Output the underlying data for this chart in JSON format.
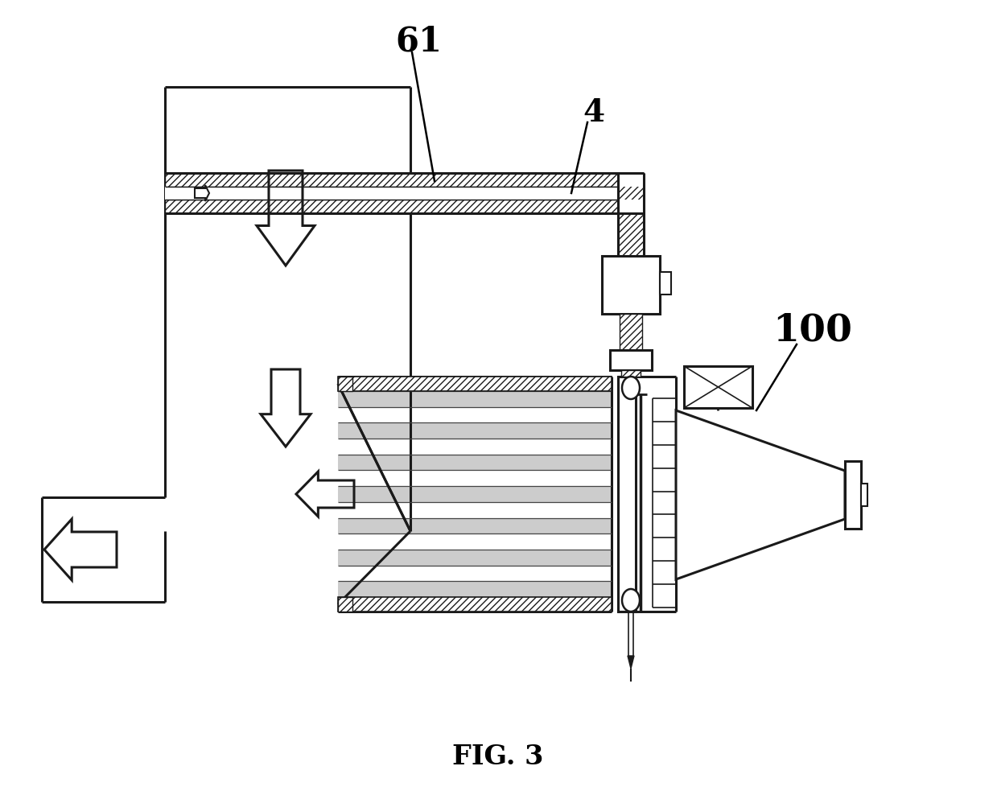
{
  "title": "FIG. 3",
  "label_61": "61",
  "label_4": "4",
  "label_100": "100",
  "bg_color": "#ffffff",
  "line_color": "#1a1a1a",
  "fig_width": 12.39,
  "fig_height": 9.88,
  "dpi": 100
}
